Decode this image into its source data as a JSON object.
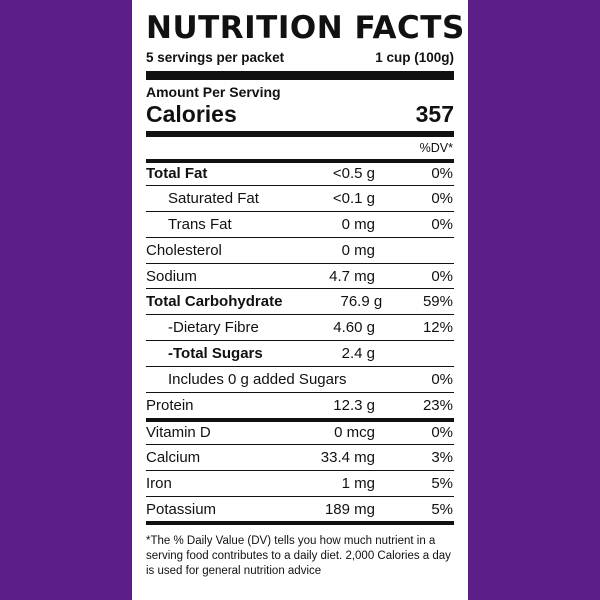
{
  "label": {
    "title": "NUTRITION FACTS",
    "servings": "5 servings per packet",
    "serving_size": "1 cup (100g)",
    "amount_per_serving": "Amount Per Serving",
    "calories_label": "Calories",
    "calories_value": "357",
    "dv_header": "%DV*",
    "rows": [
      {
        "name": "Total Fat",
        "amount": "<0.5 g",
        "dv": "0%"
      },
      {
        "name": "Saturated Fat",
        "amount": "<0.1 g",
        "dv": "0%"
      },
      {
        "name": "Trans Fat",
        "amount": "0 mg",
        "dv": "0%"
      },
      {
        "name": "Cholesterol",
        "amount": "0 mg",
        "dv": ""
      },
      {
        "name": "Sodium",
        "amount": "4.7 mg",
        "dv": "0%"
      },
      {
        "name": "Total Carbohydrate",
        "amount": "76.9 g",
        "dv": "59%"
      },
      {
        "name": "-Dietary Fibre",
        "amount": "4.60 g",
        "dv": "12%"
      },
      {
        "name": "-Total Sugars",
        "amount": "2.4 g",
        "dv": ""
      },
      {
        "name": "Includes 0 g added Sugars",
        "amount": "",
        "dv": "0%"
      },
      {
        "name": "Protein",
        "amount": "12.3 g",
        "dv": "23%"
      },
      {
        "name": "Vitamin D",
        "amount": "0 mcg",
        "dv": "0%"
      },
      {
        "name": "Calcium",
        "amount": "33.4 mg",
        "dv": "3%"
      },
      {
        "name": "Iron",
        "amount": "1 mg",
        "dv": "5%"
      },
      {
        "name": "Potassium",
        "amount": "189 mg",
        "dv": "5%"
      }
    ],
    "footnote": "*The % Daily Value (DV) tells you how much nutrient in a serving food contributes to a daily diet. 2,000 Calories a day is used for general nutrition advice"
  }
}
